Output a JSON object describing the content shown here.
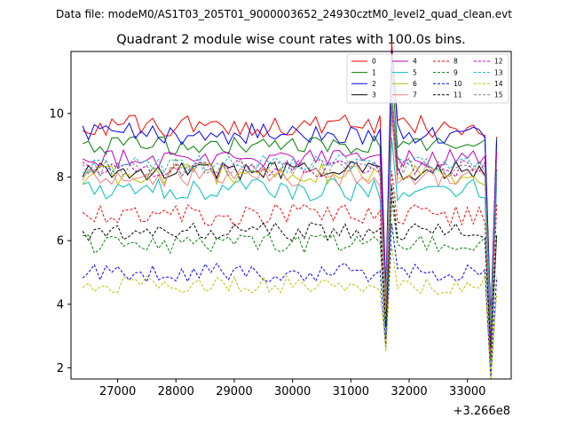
{
  "suptitle": "Data file: modeM0/AS1T03_205T01_9000003652_24930cztM0_level2_quad_clean.evt",
  "chart_data": {
    "type": "line",
    "title": "Quadrant 2 module wise count rates with 100.0s bins.",
    "xlabel": "",
    "ylabel": "",
    "x_offset_label": "+3.266e8",
    "xlim": [
      26200,
      33750
    ],
    "ylim": [
      1.65,
      11.95
    ],
    "x_ticks": [
      27000,
      28000,
      29000,
      30000,
      31000,
      32000,
      33000
    ],
    "x_tick_labels": [
      "27000",
      "28000",
      "29000",
      "30000",
      "31000",
      "32000",
      "33000"
    ],
    "y_ticks": [
      2,
      4,
      6,
      8,
      10
    ],
    "y_tick_labels": [
      "2",
      "4",
      "6",
      "8",
      "10"
    ],
    "x_start": 26400,
    "x_step": 100,
    "dips": [
      {
        "x": 31600,
        "drop": 4.6
      },
      {
        "x": 33400,
        "drop": 5.6
      }
    ],
    "spike": {
      "x": 31700,
      "boost": 2.3
    },
    "grid": false,
    "legend": {
      "position": "top-right",
      "columns": 4
    },
    "series": [
      {
        "name": "0",
        "color": "#ff0000",
        "dash": "solid",
        "level": 9.6,
        "amp": 0.35
      },
      {
        "name": "1",
        "color": "#008000",
        "dash": "solid",
        "level": 9.0,
        "amp": 0.3
      },
      {
        "name": "2",
        "color": "#0000ff",
        "dash": "solid",
        "level": 9.35,
        "amp": 0.35
      },
      {
        "name": "3",
        "color": "#000000",
        "dash": "solid",
        "level": 8.2,
        "amp": 0.3
      },
      {
        "name": "4",
        "color": "#bf00bf",
        "dash": "solid",
        "level": 8.6,
        "amp": 0.3
      },
      {
        "name": "5",
        "color": "#00bfbf",
        "dash": "solid",
        "level": 7.6,
        "amp": 0.35
      },
      {
        "name": "6",
        "color": "#bfbf00",
        "dash": "solid",
        "level": 8.1,
        "amp": 0.35
      },
      {
        "name": "7",
        "color": "#f08080",
        "dash": "solid",
        "level": 8.0,
        "amp": 0.3
      },
      {
        "name": "8",
        "color": "#ff0000",
        "dash": "dashed",
        "level": 6.8,
        "amp": 0.35
      },
      {
        "name": "9",
        "color": "#008000",
        "dash": "dashed",
        "level": 5.9,
        "amp": 0.3
      },
      {
        "name": "10",
        "color": "#0000ff",
        "dash": "dashed",
        "level": 5.0,
        "amp": 0.3
      },
      {
        "name": "11",
        "color": "#000000",
        "dash": "dashed",
        "level": 6.3,
        "amp": 0.3
      },
      {
        "name": "12",
        "color": "#bf00bf",
        "dash": "dashed",
        "level": 8.3,
        "amp": 0.3
      },
      {
        "name": "13",
        "color": "#00bfbf",
        "dash": "dashed",
        "level": 8.4,
        "amp": 0.3
      },
      {
        "name": "14",
        "color": "#bfbf00",
        "dash": "dashed",
        "level": 4.6,
        "amp": 0.3
      },
      {
        "name": "15",
        "color": "#808080",
        "dash": "dashed",
        "level": 8.3,
        "amp": 0.3
      }
    ]
  }
}
